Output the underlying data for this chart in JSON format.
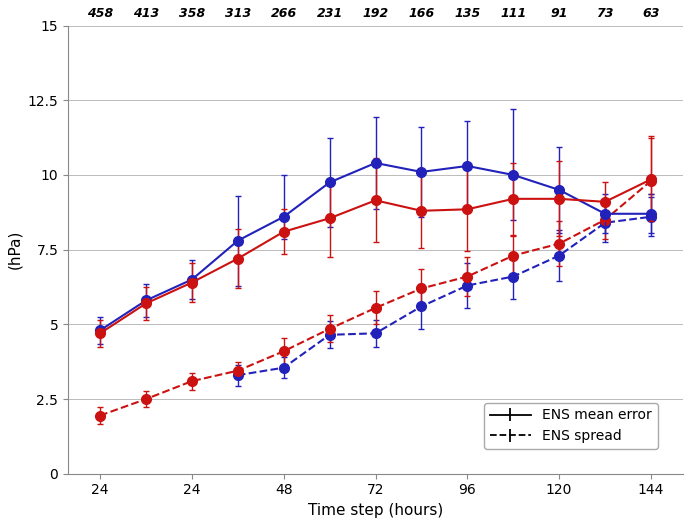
{
  "xlabel": "Time step (hours)",
  "ylabel": "(hPa)",
  "ylim": [
    0,
    15
  ],
  "yticks": [
    0,
    2.5,
    5.0,
    7.5,
    10.0,
    12.5,
    15.0
  ],
  "ytick_labels": [
    "0",
    "2.5",
    "5",
    "7.5",
    "10",
    "12.5",
    "15"
  ],
  "sample_counts": [
    "458",
    "413",
    "358",
    "313",
    "266",
    "231",
    "192",
    "166",
    "135",
    "111",
    "91",
    "73",
    "63"
  ],
  "x_positions": [
    1,
    2,
    3,
    4,
    5,
    6,
    7,
    8,
    9,
    10,
    11,
    12,
    13
  ],
  "xlim": [
    0.3,
    13.7
  ],
  "xtick_positions": [
    1,
    3,
    5,
    7,
    9,
    11,
    13
  ],
  "xtick_labels": [
    "24",
    "24",
    "48",
    "72",
    "96",
    "120",
    "144"
  ],
  "blue_solid_y": [
    4.8,
    5.8,
    6.5,
    7.8,
    8.6,
    9.75,
    10.4,
    10.1,
    10.3,
    10.0,
    9.5,
    8.7,
    8.7
  ],
  "blue_solid_yerr_lo": [
    0.45,
    0.55,
    0.65,
    1.5,
    0.75,
    1.5,
    1.55,
    1.5,
    1.5,
    1.5,
    1.45,
    0.65,
    0.65
  ],
  "blue_solid_yerr_hi": [
    0.45,
    0.55,
    0.65,
    1.5,
    1.4,
    1.5,
    1.55,
    1.5,
    1.5,
    2.2,
    1.45,
    0.65,
    0.65
  ],
  "red_solid_y": [
    4.7,
    5.7,
    6.4,
    7.2,
    8.1,
    8.55,
    9.15,
    8.8,
    8.85,
    9.2,
    9.2,
    9.1,
    9.85
  ],
  "red_solid_yerr_lo": [
    0.45,
    0.55,
    0.65,
    1.0,
    0.75,
    1.3,
    1.4,
    1.25,
    1.4,
    1.2,
    1.25,
    0.65,
    1.4
  ],
  "red_solid_yerr_hi": [
    0.45,
    0.55,
    0.65,
    1.0,
    0.75,
    1.3,
    1.4,
    1.25,
    1.4,
    1.2,
    1.25,
    0.65,
    1.4
  ],
  "blue_dashed_y": [
    null,
    null,
    null,
    3.3,
    3.55,
    4.65,
    4.7,
    5.6,
    6.3,
    6.6,
    7.3,
    8.4,
    8.6
  ],
  "blue_dashed_yerr_lo": [
    null,
    null,
    null,
    0.35,
    0.35,
    0.45,
    0.45,
    0.75,
    0.75,
    0.75,
    0.85,
    0.65,
    0.65
  ],
  "blue_dashed_yerr_hi": [
    null,
    null,
    null,
    0.35,
    0.35,
    0.45,
    0.45,
    0.75,
    0.75,
    0.75,
    0.85,
    0.65,
    0.65
  ],
  "red_dashed_y": [
    1.95,
    2.5,
    3.1,
    3.45,
    4.1,
    4.85,
    5.55,
    6.2,
    6.6,
    7.3,
    7.7,
    8.5,
    9.8
  ],
  "red_dashed_yerr_lo": [
    0.28,
    0.28,
    0.28,
    0.28,
    0.45,
    0.45,
    0.55,
    0.65,
    0.65,
    0.65,
    0.75,
    0.65,
    0.45
  ],
  "red_dashed_yerr_hi": [
    0.28,
    0.28,
    0.28,
    0.28,
    0.45,
    0.45,
    0.55,
    0.65,
    0.65,
    0.65,
    0.75,
    0.65,
    1.5
  ],
  "blue_color": "#2222bb",
  "red_color": "#cc1111",
  "marker_size": 7,
  "linewidth": 1.5,
  "capsize": 2.5,
  "elinewidth": 1.0,
  "grid_color": "#bbbbbb",
  "background_color": "#ffffff"
}
